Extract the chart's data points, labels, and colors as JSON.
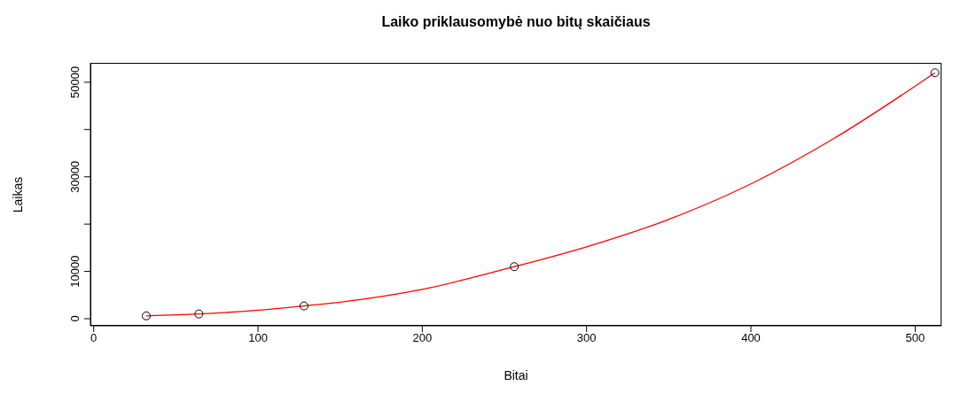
{
  "chart_data": {
    "type": "scatter",
    "title": "Laiko priklausomybė nuo bitų skaičiaus",
    "xlabel": "Bitai",
    "ylabel": "Laikas",
    "xlim": [
      -2,
      516
    ],
    "xticks": [
      0,
      100,
      200,
      300,
      400,
      500
    ],
    "ylim": [
      -1500,
      54100
    ],
    "yticks": [
      0,
      10000,
      {
        "value": 20000,
        "label": null
      },
      30000,
      {
        "value": 40000,
        "label": null
      },
      50000
    ],
    "grid": false,
    "series": [
      {
        "color": "#000000",
        "marker": "circle",
        "x": [
          32,
          64,
          128,
          256,
          512
        ],
        "values": [
          600,
          1000,
          2700,
          11000,
          52000
        ]
      },
      {
        "type": "line",
        "color": "#ff0000",
        "marker": "none",
        "line_style": "solid",
        "x": [
          32,
          64,
          100,
          128,
          150,
          200,
          256,
          300,
          350,
          400,
          450,
          512
        ],
        "values": [
          600,
          1000,
          1800,
          2700,
          3500,
          6200,
          11000,
          15200,
          21000,
          28500,
          38000,
          52000
        ]
      }
    ]
  }
}
